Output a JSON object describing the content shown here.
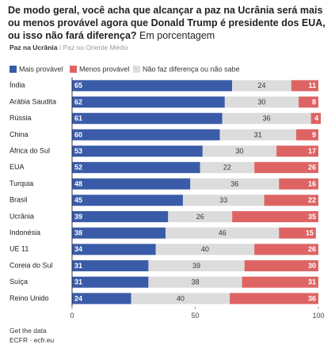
{
  "chart_data": {
    "type": "stacked_bar_horizontal",
    "title": "De modo geral, você acha que alcançar a paz na Ucrânia será mais ou menos provável agora que Donald Trump é presidente dos EUA, ou isso não fará diferença?",
    "subtitle": "Em porcentagem",
    "tabs": [
      "Paz na Ucrânia",
      "Paz no Oriente Médio"
    ],
    "tab_separator": "/",
    "categories": [
      "Índia",
      "Arábia Saudita",
      "Rússia",
      "China",
      "África do Sul",
      "EUA",
      "Turquia",
      "Brasil",
      "Ucrânia",
      "Indonésia",
      "UE 11",
      "Coreia do Sul",
      "Suíça",
      "Reino Unido"
    ],
    "series": [
      {
        "name": "Mais provável",
        "color": "#3a5ba8",
        "values": [
          65,
          62,
          61,
          60,
          53,
          52,
          48,
          45,
          39,
          38,
          34,
          31,
          31,
          24
        ]
      },
      {
        "name": "Não faz diferença ou não sabe",
        "color": "#dcdcdc",
        "values": [
          24,
          30,
          36,
          31,
          30,
          22,
          36,
          33,
          26,
          46,
          40,
          39,
          38,
          40
        ]
      },
      {
        "name": "Menos provável",
        "color": "#de6464",
        "values": [
          11,
          8,
          4,
          9,
          17,
          26,
          16,
          22,
          35,
          15,
          26,
          30,
          31,
          36
        ]
      }
    ],
    "xlim": [
      0,
      100
    ],
    "xticks": [
      0,
      50,
      100
    ],
    "footer": [
      "Get the data",
      "ECFR · ecfr.eu"
    ]
  }
}
